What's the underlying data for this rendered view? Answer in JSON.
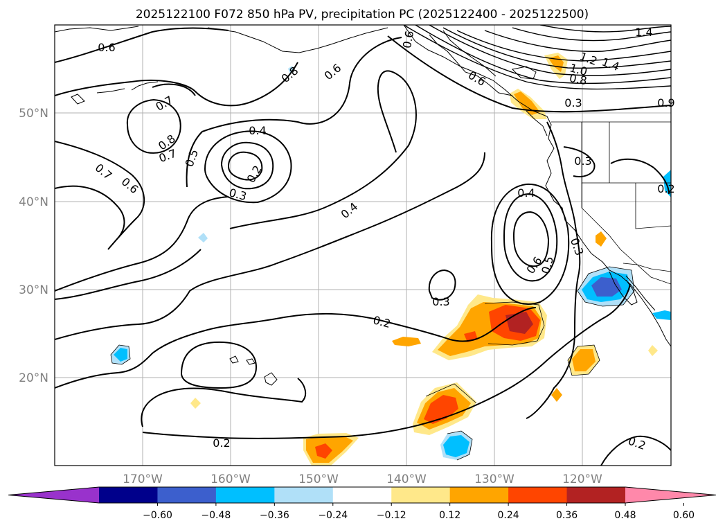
{
  "title": "2025122100 F072 850 hPa PV, precipitation PC (2025122400 - 2025122500)",
  "lat_labels": [
    "50°N",
    "40°N",
    "30°N",
    "20°N"
  ],
  "lon_labels": [
    "170°W",
    "160°W",
    "150°W",
    "140°W",
    "130°W",
    "120°W"
  ],
  "colorbar": {
    "colors": [
      "#9932cc",
      "#00008b",
      "#3c5fcd",
      "#00bfff",
      "#b0e0f8",
      "#ffffff",
      "#ffe88a",
      "#ffa500",
      "#ff4500",
      "#b22222",
      "#ff88aa"
    ],
    "tick_labels": [
      "−0.60",
      "−0.48",
      "−0.36",
      "−0.24",
      "−0.12",
      "0.12",
      "0.24",
      "0.36",
      "0.48",
      "0.60"
    ]
  },
  "contour_labels": {
    "c1": "0.6",
    "c2": "0.8",
    "c3": "0.6",
    "c4": "0.6",
    "c5": "1.4",
    "c6": "1.4",
    "c7": "1.2",
    "c8": "1.0",
    "c9": "0.8",
    "c10": "0.3",
    "c11": "0.7",
    "c12": "0.8",
    "c13": "0.7",
    "c14": "0.5",
    "c15": "0.4",
    "c16": "0.2",
    "c17": "0.3",
    "c18": "0.7",
    "c19": "0.6",
    "c20": "0.4",
    "c21": "0.3",
    "c22": "0.2",
    "c23": "0.4",
    "c24": "0.3",
    "c25": "0.6",
    "c26": "0.5",
    "c27": "0.3",
    "c28": "0.2",
    "c29": "0.2",
    "c30": "0.2",
    "c31": "0.6",
    "c32": "0.9"
  }
}
